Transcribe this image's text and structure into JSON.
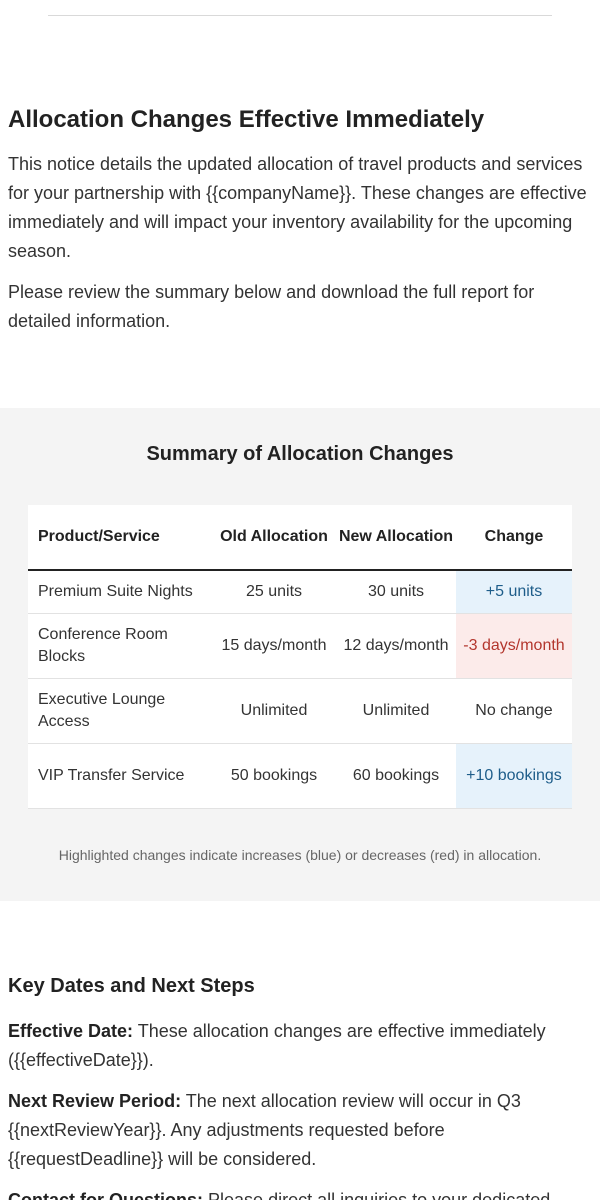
{
  "intro": {
    "heading": "Allocation Changes Effective Immediately",
    "paragraph1": "This notice details the updated allocation of travel products and services for your partnership with {{companyName}}. These changes are effective immediately and will impact your inventory availability for the upcoming season.",
    "paragraph2": "Please review the summary below and download the full report for detailed information."
  },
  "summary": {
    "heading": "Summary of Allocation Changes",
    "columns": [
      "Product/Service",
      "Old Allocation",
      "New Allocation",
      "Change"
    ],
    "rows": [
      [
        "Premium Suite Nights",
        "25 units",
        "30 units",
        "+5 units"
      ],
      [
        "Conference Room Blocks",
        "15 days/month",
        "12 days/month",
        "-3 days/month"
      ],
      [
        "Executive Lounge Access",
        "Unlimited",
        "Unlimited",
        "No change"
      ],
      [
        "VIP Transfer Service",
        "50 bookings",
        "60 bookings",
        "+10 bookings"
      ]
    ],
    "note": "Highlighted changes indicate increases (blue) or decreases (red) in allocation.",
    "colors": {
      "increase_bg": "#e6f2fb",
      "increase_text": "#1e5d8a",
      "decrease_bg": "#fcebea",
      "decrease_text": "#b3362d"
    }
  },
  "dates": {
    "heading": "Key Dates and Next Steps",
    "items": [
      {
        "label": "Effective Date:",
        "text": "These allocation changes are effective immediately ({{effectiveDate}})."
      },
      {
        "label": "Next Review Period:",
        "text": "The next allocation review will occur in Q3 {{nextReviewYear}}. Any adjustments requested before {{requestDeadline}} will be considered."
      },
      {
        "label": "Contact for Questions:",
        "text": "Please direct all inquiries to your dedicated"
      }
    ]
  }
}
